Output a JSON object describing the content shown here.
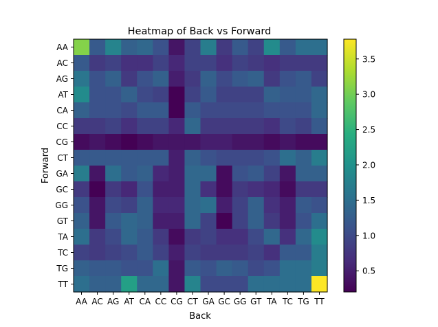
{
  "chart_data": {
    "type": "heatmap",
    "title": "Heatmap of Back vs Forward",
    "xlabel": "Back",
    "ylabel": "Forward",
    "x_categories": [
      "AA",
      "AC",
      "AG",
      "AT",
      "CA",
      "CC",
      "CG",
      "CT",
      "GA",
      "GC",
      "GG",
      "GT",
      "TA",
      "TC",
      "TG",
      "TT"
    ],
    "y_categories": [
      "AA",
      "AC",
      "AG",
      "AT",
      "CA",
      "CC",
      "CG",
      "CT",
      "GA",
      "GC",
      "GG",
      "GT",
      "TA",
      "TC",
      "TG",
      "TT"
    ],
    "colormap": "viridis",
    "vmin": 0.2,
    "vmax": 3.78,
    "colorbar_ticks": [
      "0.5",
      "1.0",
      "1.5",
      "2.0",
      "2.5",
      "3.0",
      "3.5"
    ],
    "colorbar_tick_values": [
      0.5,
      1.0,
      1.5,
      2.0,
      2.5,
      3.0,
      3.5
    ],
    "values": [
      [
        3.1,
        1.2,
        1.8,
        1.3,
        1.4,
        1.1,
        0.4,
        0.9,
        1.7,
        0.8,
        1.2,
        0.9,
        1.9,
        1.2,
        1.5,
        1.5
      ],
      [
        1.2,
        0.8,
        0.9,
        0.7,
        0.7,
        0.9,
        0.6,
        0.9,
        0.9,
        0.7,
        0.9,
        0.8,
        0.7,
        0.8,
        0.8,
        0.8
      ],
      [
        1.6,
        1.1,
        1.3,
        0.8,
        1.1,
        1.3,
        0.5,
        0.8,
        1.3,
        1.0,
        1.2,
        1.3,
        0.8,
        1.1,
        1.2,
        0.9
      ],
      [
        1.9,
        1.1,
        1.1,
        1.3,
        1.0,
        0.9,
        0.2,
        0.9,
        1.2,
        0.9,
        0.9,
        0.9,
        1.3,
        1.2,
        1.2,
        1.4
      ],
      [
        1.3,
        1.1,
        1.1,
        1.0,
        1.2,
        1.2,
        0.2,
        1.2,
        1.0,
        1.0,
        1.0,
        1.0,
        1.1,
        1.1,
        1.1,
        1.4
      ],
      [
        0.8,
        0.8,
        0.9,
        0.7,
        0.9,
        0.9,
        0.6,
        1.4,
        0.8,
        0.8,
        0.8,
        0.8,
        0.7,
        1.0,
        0.9,
        1.2
      ],
      [
        0.3,
        0.4,
        0.3,
        0.2,
        0.3,
        0.4,
        0.4,
        0.4,
        0.5,
        0.5,
        0.4,
        0.4,
        0.3,
        0.4,
        0.3,
        0.3
      ],
      [
        1.2,
        1.2,
        1.2,
        1.2,
        1.2,
        1.2,
        0.5,
        1.3,
        1.1,
        1.0,
        1.0,
        1.0,
        1.1,
        1.5,
        1.3,
        1.7
      ],
      [
        1.7,
        0.4,
        1.5,
        1.2,
        1.3,
        0.6,
        0.5,
        1.4,
        1.4,
        0.3,
        1.1,
        1.2,
        0.9,
        0.4,
        1.3,
        1.3
      ],
      [
        0.8,
        0.2,
        0.8,
        0.6,
        1.1,
        0.5,
        0.5,
        1.4,
        0.7,
        0.3,
        0.8,
        0.7,
        0.6,
        0.3,
        0.8,
        0.8
      ],
      [
        1.1,
        0.4,
        1.0,
        0.9,
        1.3,
        0.6,
        0.6,
        1.4,
        1.5,
        0.5,
        0.9,
        1.3,
        0.7,
        0.5,
        1.2,
        1.1
      ],
      [
        1.3,
        0.4,
        1.2,
        1.4,
        1.3,
        0.5,
        0.5,
        1.4,
        0.9,
        0.2,
        0.9,
        1.3,
        0.8,
        0.5,
        1.1,
        1.5
      ],
      [
        1.5,
        0.8,
        1.0,
        1.4,
        1.2,
        0.8,
        0.3,
        0.8,
        0.9,
        0.7,
        0.7,
        1.0,
        1.4,
        0.7,
        1.4,
        1.9
      ],
      [
        0.9,
        0.8,
        0.9,
        1.0,
        1.2,
        0.9,
        0.5,
        0.9,
        0.8,
        0.8,
        0.8,
        0.9,
        0.7,
        1.2,
        1.2,
        1.7
      ],
      [
        1.3,
        1.2,
        1.2,
        1.1,
        1.1,
        1.5,
        0.4,
        1.2,
        1.1,
        1.3,
        1.2,
        1.0,
        1.1,
        1.5,
        1.5,
        1.7
      ],
      [
        1.5,
        1.3,
        1.3,
        2.2,
        1.4,
        1.4,
        0.4,
        1.8,
        1.0,
        1.0,
        1.0,
        1.5,
        1.5,
        1.5,
        1.5,
        3.78
      ]
    ]
  }
}
